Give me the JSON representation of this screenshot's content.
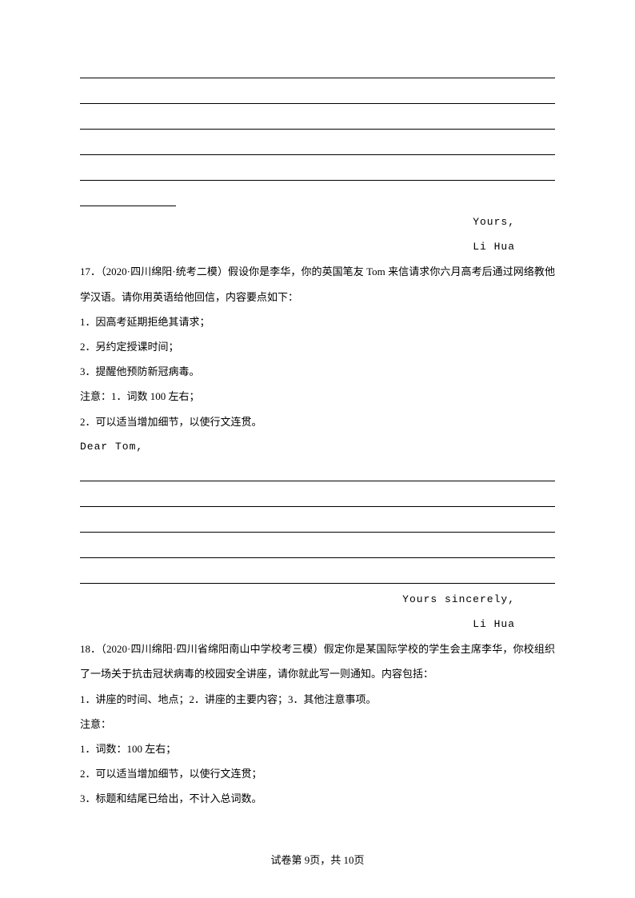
{
  "closing1": {
    "yours": "Yours,",
    "name": "Li Hua"
  },
  "q17": {
    "heading": "17．（2020·四川绵阳·统考二模）假设你是李华，你的英国笔友 Tom 来信请求你六月高考后通过网络教他学汉语。请你用英语给他回信，内容要点如下：",
    "p1": "1．因高考延期拒绝其请求；",
    "p2": "2．另约定授课时间；",
    "p3": "3．提醒他预防新冠病毒。",
    "notice": "注意：1．词数 100 左右；",
    "n2": "2．可以适当增加细节，以使行文连贯。",
    "salutation": "Dear Tom,",
    "closing": "Yours sincerely,",
    "name": "Li Hua"
  },
  "q18": {
    "heading": "18．（2020·四川绵阳·四川省绵阳南山中学校考三模）假定你是某国际学校的学生会主席李华，你校组织了一场关于抗击冠状病毒的校园安全讲座，请你就此写一则通知。内容包括：",
    "p1": "1．讲座的时间、地点；2．讲座的主要内容；3．其他注意事项。",
    "notice": "注意：",
    "n1": "1．词数：100 左右；",
    "n2": "2．可以适当增加细节，以使行文连贯；",
    "n3": "3．标题和结尾已给出，不计入总词数。"
  },
  "footer": "试卷第 9页，共 10页"
}
